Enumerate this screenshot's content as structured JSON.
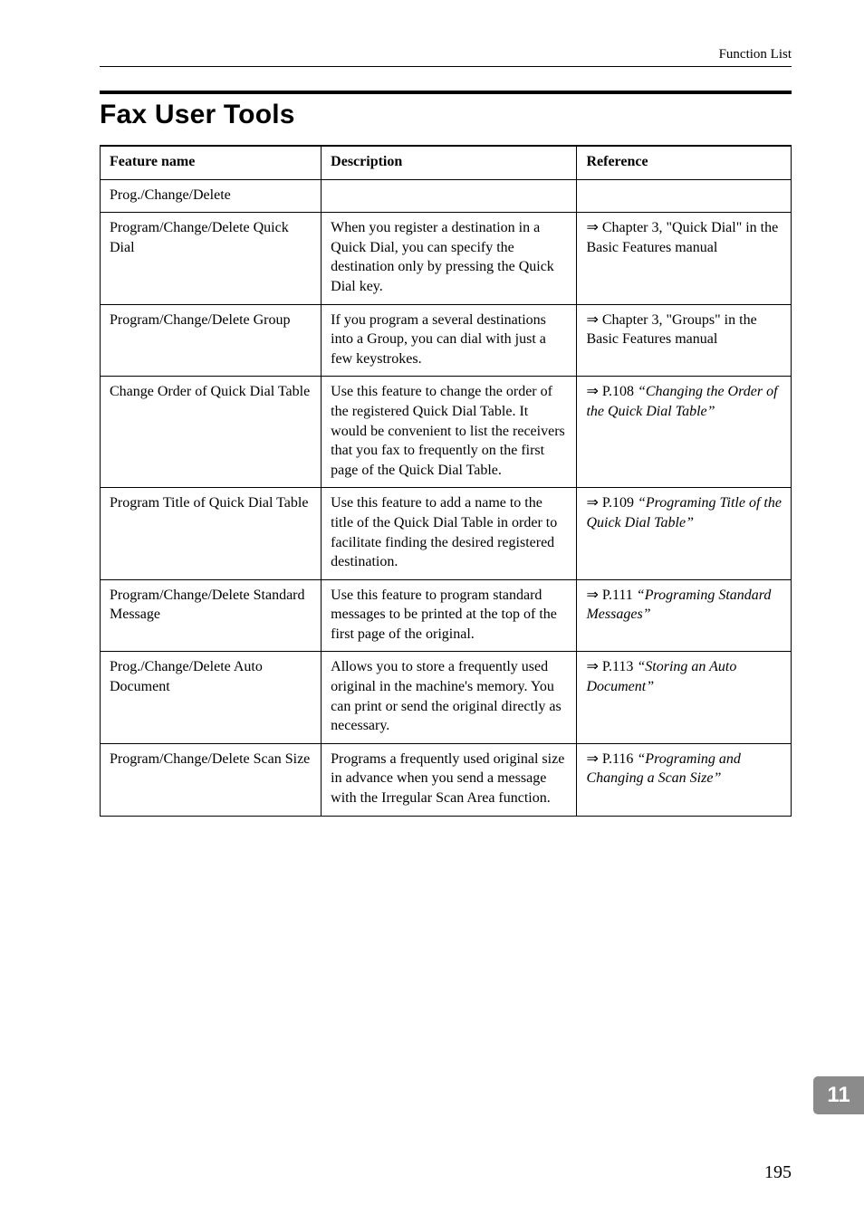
{
  "running_head": "Function List",
  "section_title": "Fax User Tools",
  "chapter_tab": "11",
  "page_number": "195",
  "table": {
    "headers": {
      "feature": "Feature name",
      "description": "Description",
      "reference": "Reference"
    },
    "rows": [
      {
        "feature": "Prog./Change/Delete",
        "description": "",
        "reference": ""
      },
      {
        "feature": "Program/Change/Delete Quick Dial",
        "description": "When you register a destination in a Quick Dial, you can specify the destination only by pressing the Quick Dial key.",
        "ref_prefix": "⇒ Chapter 3, \"Quick Dial\" in the Basic Features manual",
        "ref_italic": ""
      },
      {
        "feature": "Program/Change/Delete Group",
        "description": "If you program a several destinations into a Group, you can dial with just a few keystrokes.",
        "ref_prefix": "⇒ Chapter 3, \"Groups\" in the Basic Features manual",
        "ref_italic": ""
      },
      {
        "feature": "Change Order of Quick Dial Table",
        "description": "Use this feature to change the order of the registered Quick Dial Table. It would be convenient to list the receivers that you fax to frequently on the first page of the Quick Dial Table.",
        "ref_prefix": "⇒ P.108 ",
        "ref_italic": "“Changing the Order of the Quick Dial Table”"
      },
      {
        "feature": "Program Title of Quick Dial Table",
        "description": "Use this feature to add a name to the title of the Quick Dial Table in order to facilitate finding the desired registered destination.",
        "ref_prefix": "⇒ P.109 ",
        "ref_italic": "“Programing Title of the Quick Dial Table”"
      },
      {
        "feature": "Program/Change/Delete Standard Message",
        "description": "Use this feature to program standard messages to be printed at the top of the first page of the original.",
        "ref_prefix": "⇒ P.111 ",
        "ref_italic": "“Programing Standard Messages”"
      },
      {
        "feature": "Prog./Change/Delete Auto Document",
        "description": "Allows you to store a frequently used original in the machine's memory. You can print or send the original directly as necessary.",
        "ref_prefix": "⇒ P.113 ",
        "ref_italic": "“Storing an Auto Document”"
      },
      {
        "feature": "Program/Change/Delete Scan Size",
        "description": "Programs a frequently used original size in advance when you send a message with the Irregular Scan Area function.",
        "ref_prefix": "⇒ P.116 ",
        "ref_italic": "“Programing and Changing a Scan Size”"
      }
    ]
  }
}
